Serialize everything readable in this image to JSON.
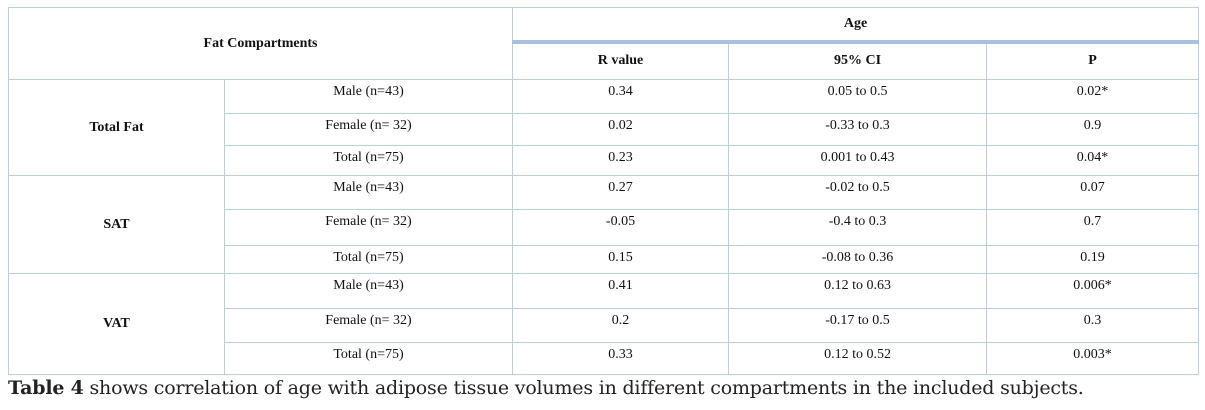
{
  "header": {
    "compartments": "Fat Compartments",
    "group": "Age",
    "columns": [
      "R value",
      "95% CI",
      "P"
    ]
  },
  "groups": [
    {
      "name": "Total Fat",
      "rows": [
        {
          "subject": "Male (n=43)",
          "r": "0.34",
          "ci": "0.05 to 0.5",
          "p": "0.02*"
        },
        {
          "subject": "Female (n= 32)",
          "r": "0.02",
          "ci": "-0.33 to 0.3",
          "p": "0.9"
        },
        {
          "subject": "Total (n=75)",
          "r": "0.23",
          "ci": "0.001 to 0.43",
          "p": "0.04*"
        }
      ]
    },
    {
      "name": "SAT",
      "rows": [
        {
          "subject": "Male (n=43)",
          "r": "0.27",
          "ci": "-0.02 to 0.5",
          "p": "0.07"
        },
        {
          "subject": "Female (n= 32)",
          "r": "-0.05",
          "ci": "-0.4 to 0.3",
          "p": "0.7"
        },
        {
          "subject": "Total (n=75)",
          "r": "0.15",
          "ci": "-0.08 to 0.36",
          "p": "0.19"
        }
      ]
    },
    {
      "name": "VAT",
      "rows": [
        {
          "subject": "Male (n=43)",
          "r": "0.41",
          "ci": "0.12 to 0.63",
          "p": "0.006*"
        },
        {
          "subject": "Female (n= 32)",
          "r": "0.2",
          "ci": "-0.17 to 0.5",
          "p": "0.3"
        },
        {
          "subject": "Total (n=75)",
          "r": "0.33",
          "ci": "0.12 to 0.52",
          "p": "0.003*"
        }
      ]
    }
  ],
  "caption": {
    "label": "Table 4",
    "text": " shows correlation of age with adipose tissue volumes in different compartments in the included subjects."
  }
}
